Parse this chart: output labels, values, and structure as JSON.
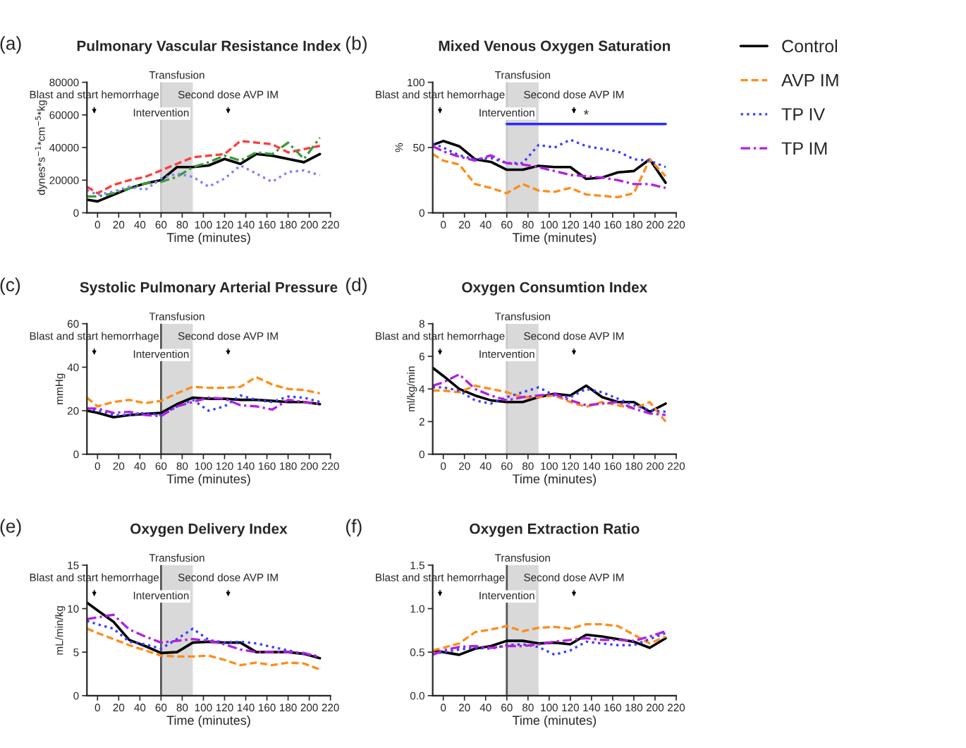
{
  "chart_data": [
    {
      "type": "line",
      "subtitle": "(a)",
      "title": "Pulmonary Vascular Resistance Index",
      "xlabel": "Time (minutes)",
      "ylabel": "dynes*s$^{−1}$*cm$^{−5}$*kg",
      "x": [
        -10,
        0,
        15,
        30,
        45,
        60,
        75,
        90,
        105,
        120,
        135,
        150,
        165,
        180,
        195,
        210
      ],
      "xlim": [
        -10,
        220
      ],
      "xticks": [
        0,
        20,
        40,
        60,
        80,
        100,
        120,
        140,
        160,
        180,
        200,
        220
      ],
      "ylim": [
        0,
        80000
      ],
      "yticks": [
        0,
        20000,
        40000,
        60000,
        80000
      ],
      "grid": false,
      "series": [
        {
          "color": "#000000",
          "line_style": "solid",
          "values": [
            8000,
            7000,
            11000,
            15000,
            18000,
            20000,
            28000,
            28000,
            29000,
            33000,
            30000,
            36000,
            35000,
            33000,
            31000,
            36000
          ]
        },
        {
          "color": "#ff3b3b",
          "line_style": "dashed",
          "values": [
            16000,
            12000,
            17000,
            20000,
            22000,
            26000,
            30000,
            34000,
            35000,
            36000,
            44000,
            43000,
            42000,
            37000,
            39000,
            41000
          ]
        },
        {
          "color": "#3a9a3a",
          "line_style": "dashdot",
          "values": [
            10000,
            10000,
            12000,
            15000,
            18000,
            19000,
            22000,
            28000,
            31000,
            35000,
            32000,
            37000,
            36000,
            43000,
            33000,
            46000
          ]
        },
        {
          "color": "#8080ff",
          "line_style": "dotted",
          "values": [
            14000,
            11000,
            13000,
            16000,
            14000,
            21000,
            24000,
            22000,
            16000,
            21000,
            29000,
            24000,
            19000,
            25000,
            26000,
            23000
          ]
        }
      ],
      "bands": [
        {
          "axis": "x",
          "from": 60,
          "to": 90,
          "label": "Transfusion",
          "color": "#d9d9d9"
        }
      ],
      "ref_lines": [
        {
          "axis": "x",
          "value": 60,
          "label": "Intervention",
          "color": "#c8c8c8"
        }
      ],
      "annotations": [
        "Blast and start hemorrhage",
        "Second dose AVP IM"
      ]
    },
    {
      "type": "line",
      "subtitle": "(b)",
      "title": "Mixed Venous Oxygen Saturation",
      "xlabel": "Time (minutes)",
      "ylabel": "%",
      "x": [
        -10,
        0,
        15,
        30,
        45,
        60,
        75,
        90,
        105,
        120,
        135,
        150,
        165,
        180,
        195,
        210
      ],
      "xlim": [
        -10,
        220
      ],
      "xticks": [
        0,
        20,
        40,
        60,
        80,
        100,
        120,
        140,
        160,
        180,
        200,
        220
      ],
      "ylim": [
        0,
        100
      ],
      "yticks": [
        0,
        50,
        100
      ],
      "grid": false,
      "legend": "right",
      "series": [
        {
          "name": "Control",
          "color": "#000000",
          "line_style": "solid",
          "values": [
            52,
            55,
            51,
            41,
            39,
            33,
            33,
            36,
            35,
            35,
            26,
            27,
            31,
            32,
            41,
            23
          ]
        },
        {
          "name": "AVP IM",
          "color": "#ff8c1a",
          "line_style": "dashed",
          "values": [
            45,
            40,
            37,
            22,
            19,
            15,
            22,
            17,
            16,
            19,
            14,
            13,
            12,
            15,
            41,
            28
          ]
        },
        {
          "name": "TP IV",
          "color": "#3c3cff",
          "line_style": "dotted",
          "values": [
            53,
            50,
            44,
            41,
            42,
            38,
            38,
            52,
            50,
            56,
            51,
            49,
            47,
            41,
            40,
            35
          ]
        },
        {
          "name": "TP IM",
          "color": "#b020e0",
          "line_style": "dashdot",
          "values": [
            51,
            47,
            43,
            40,
            44,
            38,
            37,
            35,
            32,
            29,
            28,
            27,
            25,
            22,
            22,
            19
          ]
        },
        {
          "x": [
            60,
            210
          ],
          "color": "#2a2aff",
          "line_style": "solid",
          "values": [
            68,
            68
          ]
        }
      ],
      "bands": [
        {
          "axis": "x",
          "from": 60,
          "to": 90,
          "label": "Transfusion",
          "color": "#d9d9d9"
        }
      ],
      "ref_lines": [
        {
          "axis": "x",
          "value": 60,
          "label": "Intervention",
          "color": "#c8c8c8"
        }
      ],
      "annotations": [
        "Blast and start hemorrhage",
        "Second dose AVP IM",
        {
          "text": "*",
          "x": 135,
          "y": 68
        }
      ]
    },
    {
      "type": "line",
      "subtitle": "(c)",
      "title": "Systolic Pulmonary Arterial Pressure",
      "xlabel": "Time (minutes)",
      "ylabel": "mmHg",
      "x": [
        -10,
        0,
        15,
        30,
        45,
        60,
        75,
        90,
        105,
        120,
        135,
        150,
        165,
        180,
        195,
        210
      ],
      "xlim": [
        -10,
        220
      ],
      "xticks": [
        0,
        20,
        40,
        60,
        80,
        100,
        120,
        140,
        160,
        180,
        200,
        220
      ],
      "ylim": [
        0,
        60
      ],
      "yticks": [
        0,
        20,
        40,
        60
      ],
      "grid": false,
      "series": [
        {
          "color": "#000000",
          "line_style": "solid",
          "values": [
            20,
            19,
            17,
            18,
            18.5,
            19,
            23,
            26,
            25.5,
            25.5,
            25,
            25,
            24.5,
            24,
            24,
            23
          ]
        },
        {
          "color": "#ff8c1a",
          "line_style": "dashed",
          "values": [
            26,
            22,
            24,
            25,
            23.5,
            24.5,
            28,
            31,
            30.5,
            30.5,
            31,
            35.5,
            32,
            30,
            29.5,
            28
          ]
        },
        {
          "color": "#3c3cff",
          "line_style": "dotted",
          "values": [
            21,
            20,
            18,
            18,
            19,
            18,
            22,
            25,
            20,
            22,
            27,
            25,
            24,
            26.5,
            26,
            24
          ]
        },
        {
          "color": "#b020e0",
          "line_style": "dashdot",
          "values": [
            21,
            21,
            19,
            19.5,
            18,
            17.5,
            22,
            24,
            26,
            25.5,
            22.5,
            22,
            20.5,
            25,
            24,
            23
          ]
        }
      ],
      "bands": [
        {
          "axis": "x",
          "from": 60,
          "to": 90,
          "label": "Transfusion",
          "color": "#d9d9d9"
        }
      ],
      "ref_lines": [
        {
          "axis": "x",
          "value": 60,
          "label": "Intervention",
          "color": "#555555"
        }
      ],
      "annotations": [
        "Blast and start hemorrhage",
        "Second dose AVP IM"
      ]
    },
    {
      "type": "line",
      "subtitle": "(d)",
      "title": "Oxygen Consumtion Index",
      "xlabel": "Time (minutes)",
      "ylabel": "ml/kg/min",
      "x": [
        -10,
        0,
        15,
        30,
        45,
        60,
        75,
        90,
        105,
        120,
        135,
        150,
        165,
        180,
        195,
        210
      ],
      "xlim": [
        -10,
        220
      ],
      "xticks": [
        0,
        20,
        40,
        60,
        80,
        100,
        120,
        140,
        160,
        180,
        200,
        220
      ],
      "ylim": [
        0,
        8
      ],
      "yticks": [
        0,
        2,
        4,
        6,
        8
      ],
      "grid": false,
      "series": [
        {
          "color": "#000000",
          "line_style": "solid",
          "values": [
            5.3,
            4.8,
            4.0,
            3.6,
            3.3,
            3.2,
            3.2,
            3.5,
            3.7,
            3.6,
            4.2,
            3.5,
            3.2,
            3.2,
            2.6,
            3.1
          ]
        },
        {
          "color": "#ff8c1a",
          "line_style": "dashed",
          "values": [
            3.9,
            3.9,
            3.8,
            4.2,
            4.0,
            3.8,
            3.5,
            3.5,
            3.6,
            3.2,
            2.9,
            3.2,
            3.0,
            2.8,
            3.2,
            2.0
          ]
        },
        {
          "color": "#3c3cff",
          "line_style": "dotted",
          "values": [
            4.1,
            4.1,
            3.9,
            3.3,
            3.1,
            3.5,
            3.8,
            4.1,
            3.6,
            3.5,
            4.0,
            3.8,
            3.4,
            3.0,
            2.7,
            2.6
          ]
        },
        {
          "color": "#b020e0",
          "line_style": "dashdot",
          "values": [
            4.2,
            4.4,
            4.9,
            4.0,
            3.6,
            3.3,
            3.5,
            3.6,
            3.7,
            3.3,
            3.0,
            3.1,
            3.2,
            2.8,
            2.5,
            2.4
          ]
        }
      ],
      "bands": [
        {
          "axis": "x",
          "from": 60,
          "to": 90,
          "label": "Transfusion",
          "color": "#d9d9d9"
        }
      ],
      "ref_lines": [
        {
          "axis": "x",
          "value": 60,
          "label": "Intervention",
          "color": "#c8c8c8"
        }
      ],
      "annotations": [
        "Blast and start hemorrhage",
        "Second dose AVP IM"
      ]
    },
    {
      "type": "line",
      "subtitle": "(e)",
      "title": "Oxygen Delivery Index",
      "xlabel": "Time (minutes)",
      "ylabel": "mL/min/kg",
      "x": [
        -10,
        0,
        15,
        30,
        45,
        60,
        75,
        90,
        105,
        120,
        135,
        150,
        165,
        180,
        195,
        210
      ],
      "xlim": [
        -10,
        220
      ],
      "xticks": [
        0,
        20,
        40,
        60,
        80,
        100,
        120,
        140,
        160,
        180,
        200,
        220
      ],
      "ylim": [
        0,
        15
      ],
      "yticks": [
        0,
        5,
        10,
        15
      ],
      "grid": false,
      "series": [
        {
          "color": "#000000",
          "line_style": "solid",
          "values": [
            10.7,
            9.8,
            8.5,
            6.4,
            5.7,
            4.9,
            5.0,
            6.1,
            6.2,
            6.1,
            6.1,
            5.0,
            5.0,
            5.0,
            4.8,
            4.3
          ]
        },
        {
          "color": "#ff8c1a",
          "line_style": "dashed",
          "values": [
            7.7,
            7.2,
            6.5,
            5.8,
            5.2,
            4.6,
            4.5,
            4.5,
            4.6,
            4.1,
            3.5,
            3.8,
            3.5,
            3.8,
            3.7,
            3.0
          ]
        },
        {
          "color": "#3c3cff",
          "line_style": "dotted",
          "values": [
            8.6,
            8.2,
            7.7,
            6.2,
            5.9,
            5.4,
            6.5,
            7.7,
            6.4,
            6.1,
            6.2,
            6.0,
            5.6,
            5.2,
            4.8,
            4.5
          ]
        },
        {
          "color": "#b020e0",
          "line_style": "dashdot",
          "values": [
            8.8,
            9.0,
            9.3,
            7.6,
            6.8,
            6.1,
            6.3,
            6.5,
            6.3,
            5.9,
            5.3,
            5.0,
            5.0,
            5.0,
            4.9,
            4.4
          ]
        }
      ],
      "bands": [
        {
          "axis": "x",
          "from": 60,
          "to": 90,
          "label": "Transfusion",
          "color": "#d9d9d9"
        }
      ],
      "ref_lines": [
        {
          "axis": "x",
          "value": 60,
          "label": "Intervention",
          "color": "#555555"
        }
      ],
      "annotations": [
        "Blast and start hemorrhage",
        "Second dose AVP IM"
      ]
    },
    {
      "type": "line",
      "subtitle": "(f)",
      "title": "Oxygen Extraction Ratio",
      "xlabel": "Time (minutes)",
      "x": [
        -10,
        0,
        15,
        30,
        45,
        60,
        75,
        90,
        105,
        120,
        135,
        150,
        165,
        180,
        195,
        210
      ],
      "xlim": [
        -10,
        220
      ],
      "xticks": [
        0,
        20,
        40,
        60,
        80,
        100,
        120,
        140,
        160,
        180,
        200,
        220
      ],
      "ylim": [
        0,
        1.5
      ],
      "yticks": [
        {
          "value": 0,
          "label": "0.0"
        },
        {
          "value": 0.5,
          "label": "0.5"
        },
        {
          "value": 1,
          "label": "1.0"
        },
        {
          "value": 1.5,
          "label": "1.5"
        }
      ],
      "grid": false,
      "series": [
        {
          "color": "#000000",
          "line_style": "solid",
          "values": [
            0.52,
            0.5,
            0.47,
            0.54,
            0.57,
            0.63,
            0.63,
            0.6,
            0.61,
            0.59,
            0.7,
            0.68,
            0.65,
            0.62,
            0.55,
            0.66
          ]
        },
        {
          "color": "#ff8c1a",
          "line_style": "dashed",
          "values": [
            0.52,
            0.55,
            0.6,
            0.73,
            0.76,
            0.8,
            0.74,
            0.78,
            0.79,
            0.77,
            0.82,
            0.82,
            0.8,
            0.7,
            0.6,
            0.68
          ]
        },
        {
          "color": "#3c3cff",
          "line_style": "dotted",
          "values": [
            0.48,
            0.5,
            0.53,
            0.55,
            0.54,
            0.58,
            0.59,
            0.56,
            0.47,
            0.52,
            0.62,
            0.6,
            0.58,
            0.58,
            0.65,
            0.72
          ]
        },
        {
          "color": "#b020e0",
          "line_style": "dashdot",
          "values": [
            0.47,
            0.52,
            0.56,
            0.57,
            0.55,
            0.57,
            0.57,
            0.59,
            0.62,
            0.64,
            0.66,
            0.64,
            0.64,
            0.63,
            0.68,
            0.74
          ]
        }
      ],
      "bands": [
        {
          "axis": "x",
          "from": 60,
          "to": 90,
          "label": "Transfusion",
          "color": "#d9d9d9"
        }
      ],
      "ref_lines": [
        {
          "axis": "x",
          "value": 60,
          "label": "Intervention",
          "color": "#555555"
        }
      ],
      "annotations": [
        "Blast and start hemorrhage",
        "Second dose AVP IM"
      ]
    }
  ]
}
